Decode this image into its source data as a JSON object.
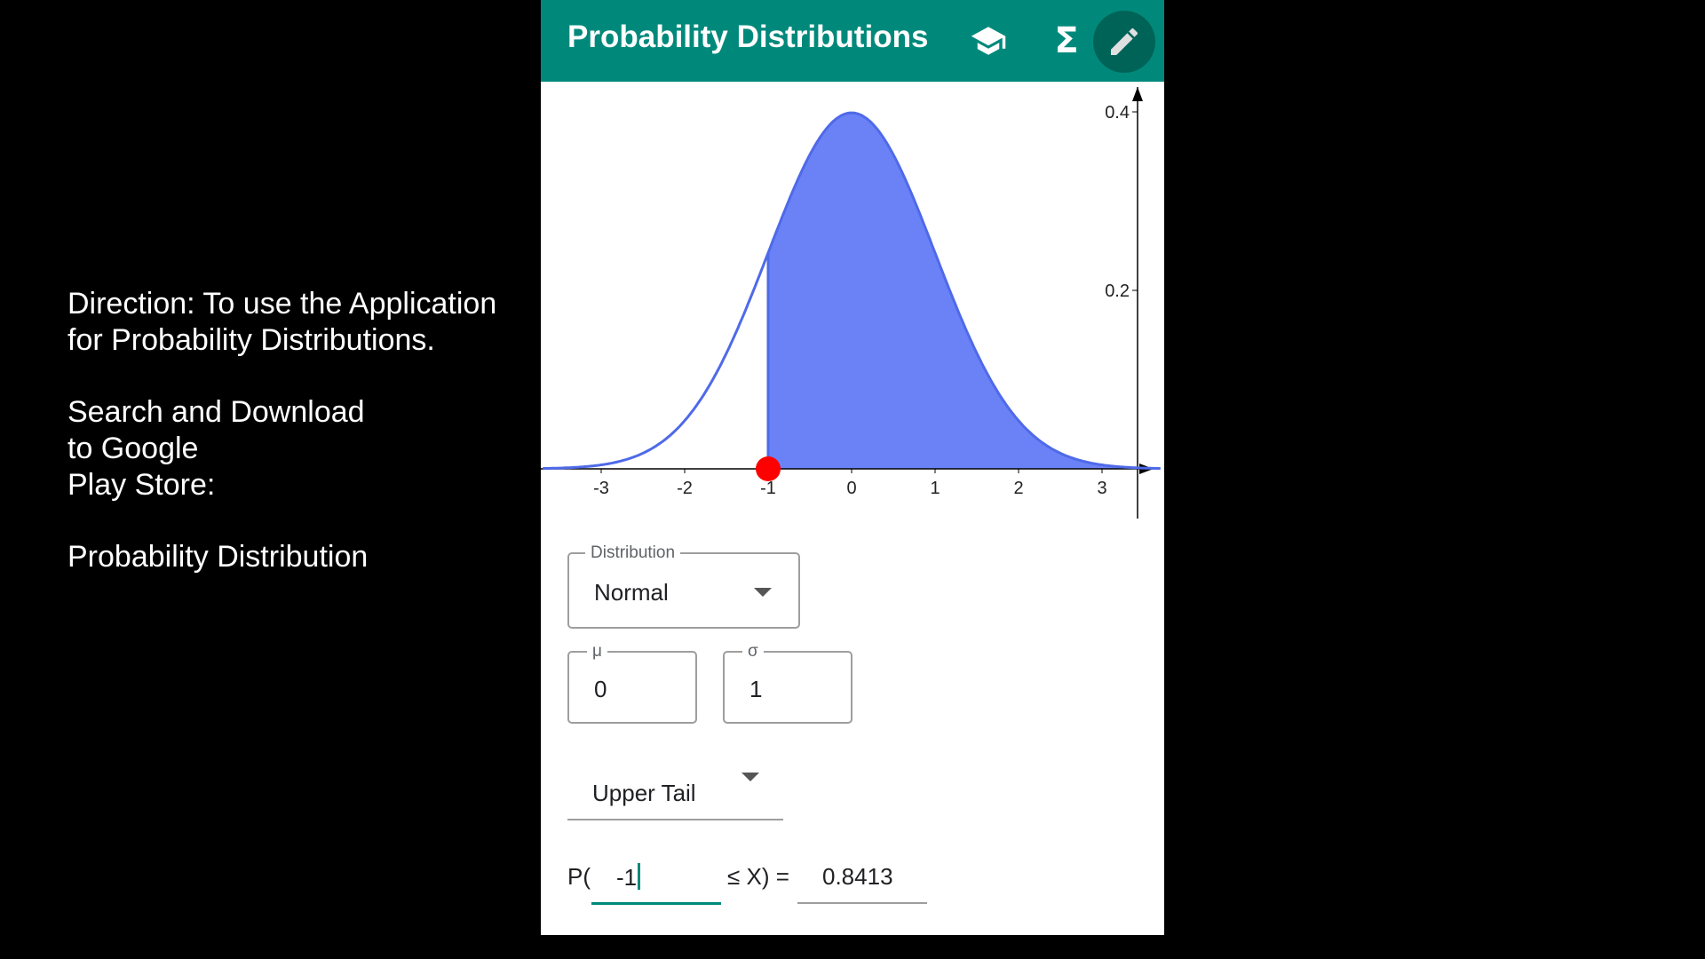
{
  "instructions": {
    "line1": "Direction: To use the Application",
    "line2": "for Probability Distributions.",
    "line3": "Search and Download",
    "line4": "to Google",
    "line5": "Play Store:",
    "line6": "Probability Distribution"
  },
  "appbar": {
    "title": "Probability Distributions",
    "icons": [
      "graduation-cap-icon",
      "sigma-icon",
      "pencil-icon"
    ],
    "sigma_glyph": "Σ",
    "color": "#00897b"
  },
  "chart_data": {
    "type": "area",
    "title": "",
    "xlabel": "",
    "ylabel": "",
    "distribution": "normal",
    "mean": 0,
    "sd": 1,
    "xlim": [
      -3.7,
      3.7
    ],
    "ylim": [
      0,
      0.4
    ],
    "x_ticks": [
      -3,
      -2,
      -1,
      0,
      1,
      2,
      3
    ],
    "x_tick_labels": [
      "-3",
      "-2",
      "-1",
      "0",
      "1",
      "2",
      "3"
    ],
    "y_ticks": [
      0.2,
      0.4
    ],
    "y_tick_labels": [
      "0.2",
      "0.4"
    ],
    "shaded_from": -1,
    "shaded_to": 3.7,
    "marker_x": -1,
    "fill_color": "#6b82f7",
    "line_color": "#4f6ae8",
    "marker_color": "#ff0000"
  },
  "form": {
    "distribution": {
      "label": "Distribution",
      "value": "Normal"
    },
    "mu": {
      "label": "μ",
      "value": "0"
    },
    "sigma": {
      "label": "σ",
      "value": "1"
    },
    "tail": {
      "value": "Upper Tail"
    },
    "probability": {
      "prefix": "P(",
      "input_value": "-1",
      "middle": "≤ X) =",
      "result": "0.8413"
    }
  }
}
